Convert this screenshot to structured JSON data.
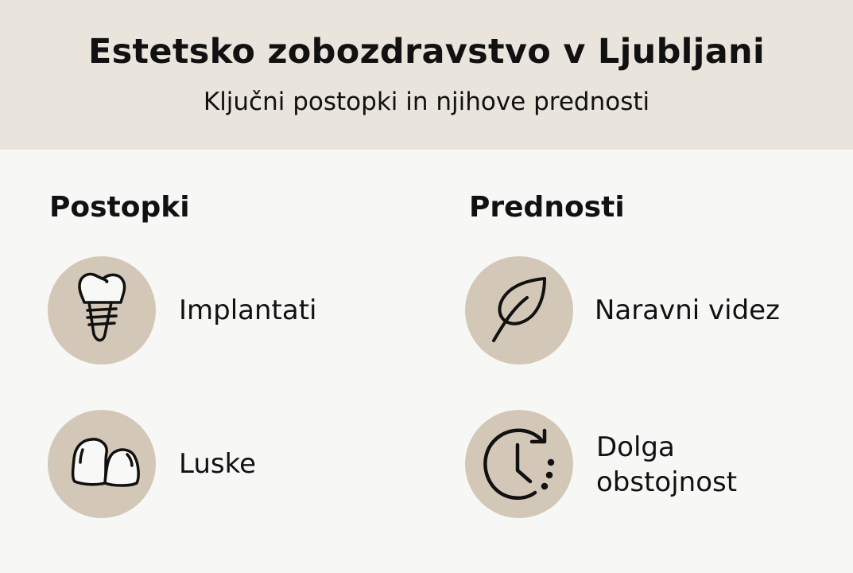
{
  "header": {
    "title": "Estetsko zobozdravstvo v Ljubljani",
    "subtitle": "Ključni postopki in njihove prednosti"
  },
  "procedures": {
    "title": "Postopki",
    "items": [
      {
        "label": "Implantati",
        "icon": "dental-implant-icon"
      },
      {
        "label": "Luske",
        "icon": "veneers-icon"
      }
    ]
  },
  "benefits": {
    "title": "Prednosti",
    "items": [
      {
        "label": "Naravni videz",
        "icon": "leaf-icon"
      },
      {
        "label_line1": "Dolga",
        "label_line2": "obstojnost",
        "icon": "clock-refresh-icon"
      }
    ]
  },
  "colors": {
    "header_bg": "#e9e4dc",
    "circle": "#d3c8b8",
    "background": "#f7f7f5"
  }
}
